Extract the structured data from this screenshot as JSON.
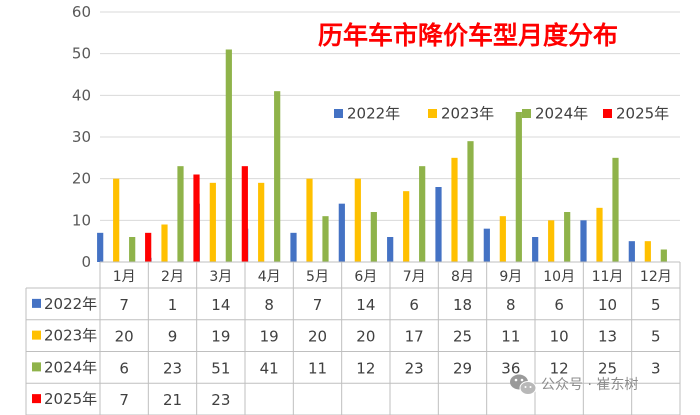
{
  "chart_data": {
    "type": "bar",
    "title": "历年车市降价车型月度分布",
    "categories": [
      "1月",
      "2月",
      "3月",
      "4月",
      "5月",
      "6月",
      "7月",
      "8月",
      "9月",
      "10月",
      "11月",
      "12月"
    ],
    "series": [
      {
        "name": "2022年",
        "color": "#4472c4",
        "values": [
          7,
          1,
          14,
          8,
          7,
          14,
          6,
          18,
          8,
          6,
          10,
          5
        ]
      },
      {
        "name": "2023年",
        "color": "#ffc000",
        "values": [
          20,
          9,
          19,
          19,
          20,
          20,
          17,
          25,
          11,
          10,
          13,
          5
        ]
      },
      {
        "name": "2024年",
        "color": "#8fb34a",
        "values": [
          6,
          23,
          51,
          41,
          11,
          12,
          23,
          29,
          36,
          12,
          25,
          3
        ]
      },
      {
        "name": "2025年",
        "color": "#ff0000",
        "values": [
          7,
          21,
          23,
          null,
          null,
          null,
          null,
          null,
          null,
          null,
          null,
          null
        ]
      }
    ],
    "ylim": [
      0,
      60
    ],
    "yticks": [
      0,
      10,
      20,
      30,
      40,
      50,
      60
    ],
    "grid": true,
    "legend": "top-right",
    "data_table": true
  },
  "watermark": {
    "icon": "wechat-icon",
    "text": "公众号 · 崔东树"
  }
}
